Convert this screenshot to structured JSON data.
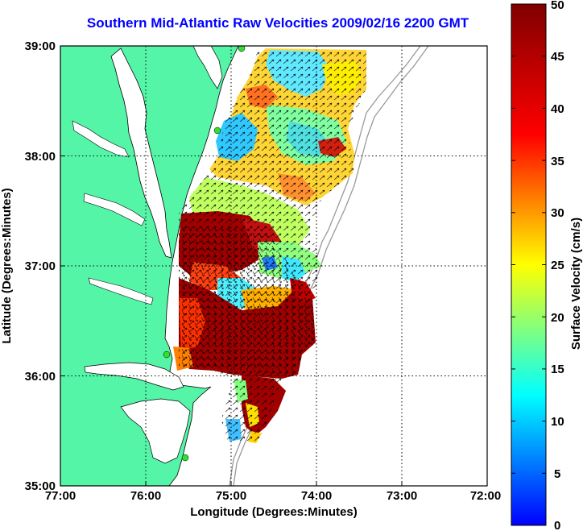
{
  "title": "Southern Mid-Atlantic Raw Velocities 2009/02/16 2200 GMT",
  "x_axis": {
    "label": "Longitude (Degrees:Minutes)",
    "ticks": [
      "77:00",
      "76:00",
      "75:00",
      "74:00",
      "73:00",
      "72:00"
    ]
  },
  "y_axis": {
    "label": "Latitude (Degrees:Minutes)",
    "ticks": [
      "39:00",
      "38:00",
      "37:00",
      "36:00",
      "35:00"
    ]
  },
  "colorbar": {
    "label": "Surface Velocity (cm/s)",
    "ticks": [
      "50",
      "45",
      "40",
      "35",
      "30",
      "25",
      "20",
      "15",
      "10",
      "5",
      "0"
    ],
    "min": 0,
    "max": 50,
    "colormap": "jet"
  },
  "colors": {
    "land": "#55f5a8",
    "water": "#ffffff",
    "title": "#0000ff",
    "station": "#33dd33",
    "grid": "#000000"
  },
  "extent": {
    "lon": [
      -77,
      -72
    ],
    "lat": [
      35,
      39
    ]
  }
}
